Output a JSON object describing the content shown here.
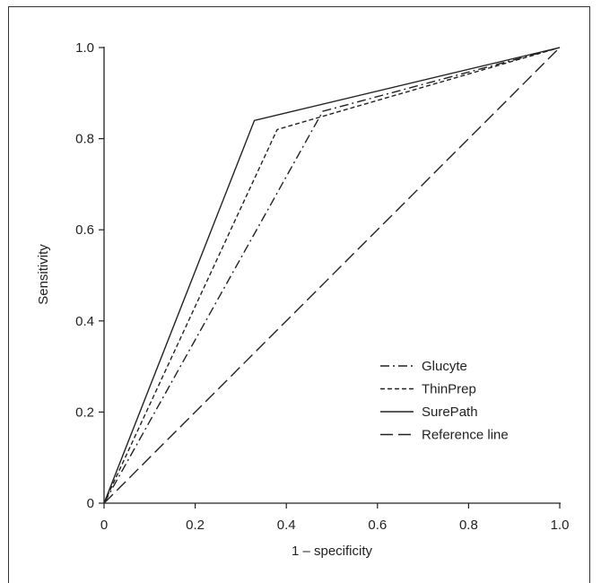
{
  "chart_data": {
    "type": "line",
    "title": "",
    "xlabel": "1 – specificity",
    "ylabel": "Sensitivity",
    "xlim": [
      0,
      1
    ],
    "ylim": [
      0,
      1
    ],
    "x_ticks": [
      "0",
      "0.2",
      "0.4",
      "0.6",
      "0.8",
      "1.0"
    ],
    "y_ticks": [
      "0",
      "0.2",
      "0.4",
      "0.6",
      "0.8",
      "1.0"
    ],
    "grid": false,
    "legend_position": "bottom-right",
    "series": [
      {
        "name": "Glucyte",
        "style": "dash-dot",
        "color": "#222222",
        "points": [
          [
            0,
            0
          ],
          [
            0.48,
            0.86
          ],
          [
            1.0,
            1.0
          ]
        ]
      },
      {
        "name": "ThinPrep",
        "style": "short-dash",
        "color": "#222222",
        "points": [
          [
            0,
            0
          ],
          [
            0.38,
            0.82
          ],
          [
            1.0,
            1.0
          ]
        ]
      },
      {
        "name": "SurePath",
        "style": "solid",
        "color": "#222222",
        "points": [
          [
            0,
            0
          ],
          [
            0.33,
            0.84
          ],
          [
            1.0,
            1.0
          ]
        ]
      },
      {
        "name": "Reference line",
        "style": "long-dash",
        "color": "#222222",
        "points": [
          [
            0,
            0
          ],
          [
            1.0,
            1.0
          ]
        ]
      }
    ]
  }
}
